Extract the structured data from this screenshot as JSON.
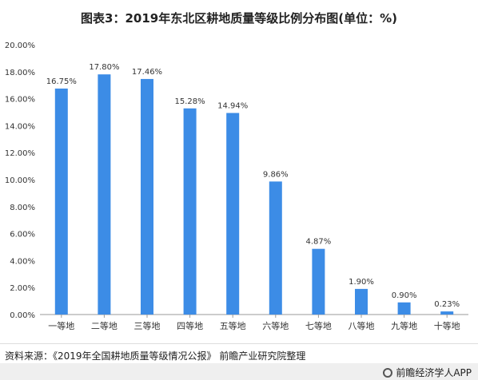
{
  "title": "图表3：2019年东北区耕地质量等级比例分布图(单位：%)",
  "source": "资料来源：《2019年全国耕地质量等级情况公报》 前瞻产业研究院整理",
  "brand": "前瞻经济学人APP",
  "colors": {
    "bar": "#3c8ce6",
    "axis": "#999999",
    "text": "#333333"
  },
  "chart_data": {
    "type": "bar",
    "categories": [
      "一等地",
      "二等地",
      "三等地",
      "四等地",
      "五等地",
      "六等地",
      "七等地",
      "八等地",
      "九等地",
      "十等地"
    ],
    "values": [
      16.75,
      17.8,
      17.46,
      15.28,
      14.94,
      9.86,
      4.87,
      1.9,
      0.9,
      0.23
    ],
    "value_labels": [
      "16.75%",
      "17.80%",
      "17.46%",
      "15.28%",
      "14.94%",
      "9.86%",
      "4.87%",
      "1.90%",
      "0.90%",
      "0.23%"
    ],
    "ylim": [
      0,
      20
    ],
    "yticks": [
      0,
      2,
      4,
      6,
      8,
      10,
      12,
      14,
      16,
      18,
      20
    ],
    "ytick_labels": [
      "0.00%",
      "2.00%",
      "4.00%",
      "6.00%",
      "8.00%",
      "10.00%",
      "12.00%",
      "14.00%",
      "16.00%",
      "18.00%",
      "20.00%"
    ],
    "grid": false
  }
}
